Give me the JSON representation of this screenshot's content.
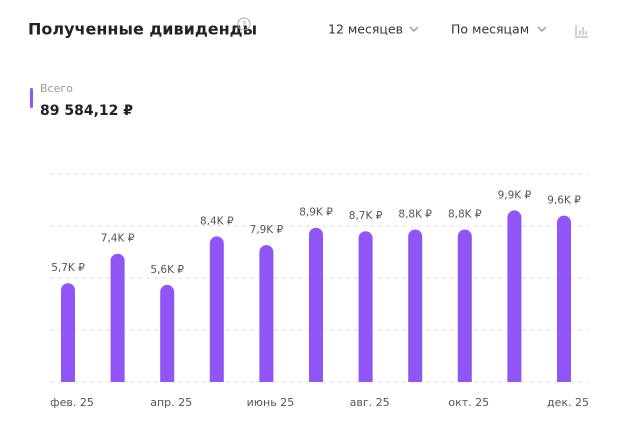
{
  "header": {
    "title": "Полученные дивиденды",
    "help": "?",
    "period": "12 месяцев",
    "grouping": "По месяцам"
  },
  "summary": {
    "label": "Всего",
    "total": "89 584,12 ₽"
  },
  "chart_data": {
    "type": "bar",
    "categories": [
      "фев. 25",
      null,
      "апр. 25",
      null,
      "июнь 25",
      null,
      "авг. 25",
      null,
      "окт. 25",
      null,
      "дек. 25"
    ],
    "values": [
      5700,
      7400,
      5600,
      8400,
      7900,
      8900,
      8700,
      8800,
      8800,
      9900,
      9600
    ],
    "value_labels": [
      "5,7K ₽",
      "7,4K ₽",
      "5,6K ₽",
      "8,4K ₽",
      "7,9K ₽",
      "8,9K ₽",
      "8,7K ₽",
      "8,8K ₽",
      "8,8K ₽",
      "9,9K ₽",
      "9,6K ₽"
    ],
    "color": "#8f55f5",
    "ylim": [
      0,
      12000
    ],
    "yticks": [
      0,
      3000,
      6000,
      9000,
      12000
    ],
    "grid": true
  }
}
